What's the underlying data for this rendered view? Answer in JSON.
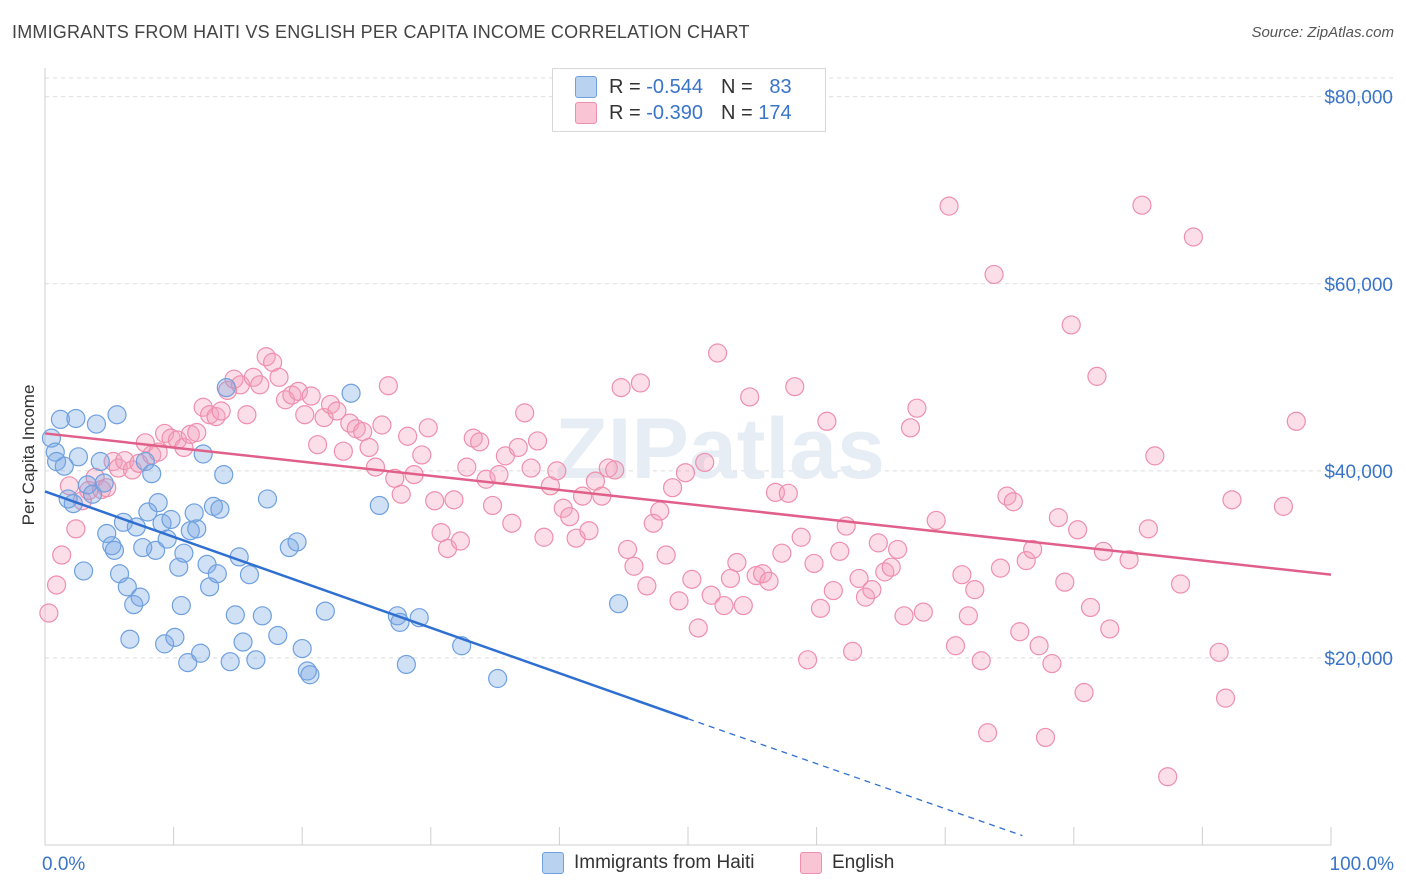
{
  "title": "IMMIGRANTS FROM HAITI VS ENGLISH PER CAPITA INCOME CORRELATION CHART",
  "source": "Source: ZipAtlas.com",
  "watermark": "ZIPatlas",
  "legend_top": [
    {
      "r_label": "R =",
      "r_value": "-0.544",
      "n_label": "N =",
      "n_value": "83"
    },
    {
      "r_label": "R =",
      "r_value": "-0.390",
      "n_label": "N =",
      "n_value": "174"
    }
  ],
  "colors": {
    "haiti": "#6fa0df",
    "english": "#ee8fad",
    "haiti_line": "#2f6fd0",
    "english_line": "#e0608a",
    "axis_label": "#3a74c9"
  },
  "chart_data": {
    "type": "scatter",
    "title": "IMMIGRANTS FROM HAITI VS ENGLISH PER CAPITA INCOME CORRELATION CHART",
    "xlabel": "",
    "ylabel": "Per Capita Income",
    "xlim": [
      0,
      100
    ],
    "ylim": [
      0,
      82000
    ],
    "x_tick_labels": [
      "0.0%",
      "100.0%"
    ],
    "y_ticks": [
      20000,
      40000,
      60000,
      80000
    ],
    "y_tick_labels": [
      "$20,000",
      "$40,000",
      "$60,000",
      "$80,000"
    ],
    "grid": true,
    "legend_placement": "top-center and bottom",
    "series": [
      {
        "name": "Immigrants from Haiti",
        "trend": {
          "x0": 0,
          "y0": 37800,
          "x1": 50,
          "y1": 13500,
          "dashed_to_x": 76,
          "dashed_to_y": 1000
        },
        "points": [
          [
            0.5,
            43500
          ],
          [
            0.8,
            42000
          ],
          [
            0.9,
            41000
          ],
          [
            1.2,
            45500
          ],
          [
            1.5,
            40500
          ],
          [
            1.8,
            37000
          ],
          [
            2.2,
            36500
          ],
          [
            2.4,
            45600
          ],
          [
            2.6,
            41500
          ],
          [
            3.0,
            29300
          ],
          [
            3.3,
            38500
          ],
          [
            3.7,
            37500
          ],
          [
            4.0,
            45000
          ],
          [
            4.3,
            41000
          ],
          [
            4.6,
            38700
          ],
          [
            4.8,
            33300
          ],
          [
            5.2,
            32000
          ],
          [
            5.4,
            31500
          ],
          [
            5.6,
            46000
          ],
          [
            5.8,
            29000
          ],
          [
            6.1,
            34500
          ],
          [
            6.4,
            27600
          ],
          [
            6.6,
            22000
          ],
          [
            6.9,
            25700
          ],
          [
            7.1,
            34000
          ],
          [
            7.4,
            26500
          ],
          [
            7.6,
            31800
          ],
          [
            7.8,
            41000
          ],
          [
            8.0,
            35600
          ],
          [
            8.3,
            39700
          ],
          [
            8.6,
            31500
          ],
          [
            8.8,
            36600
          ],
          [
            9.1,
            34400
          ],
          [
            9.3,
            21500
          ],
          [
            9.5,
            32700
          ],
          [
            9.8,
            34800
          ],
          [
            10.1,
            22200
          ],
          [
            10.4,
            29700
          ],
          [
            10.6,
            25600
          ],
          [
            10.8,
            31200
          ],
          [
            11.1,
            19500
          ],
          [
            11.3,
            33600
          ],
          [
            11.6,
            35500
          ],
          [
            11.8,
            33800
          ],
          [
            12.1,
            20500
          ],
          [
            12.3,
            41800
          ],
          [
            12.6,
            30000
          ],
          [
            12.8,
            27600
          ],
          [
            13.1,
            36200
          ],
          [
            13.4,
            29000
          ],
          [
            13.6,
            35900
          ],
          [
            13.9,
            39600
          ],
          [
            14.1,
            48900
          ],
          [
            14.4,
            19600
          ],
          [
            14.8,
            24600
          ],
          [
            15.1,
            30800
          ],
          [
            15.4,
            21700
          ],
          [
            15.9,
            28900
          ],
          [
            16.4,
            19800
          ],
          [
            16.9,
            24500
          ],
          [
            17.3,
            37000
          ],
          [
            18.1,
            22400
          ],
          [
            19.0,
            31800
          ],
          [
            19.6,
            32400
          ],
          [
            20.0,
            21000
          ],
          [
            20.4,
            18600
          ],
          [
            20.6,
            18200
          ],
          [
            21.8,
            25000
          ],
          [
            23.8,
            48300
          ],
          [
            26.0,
            36300
          ],
          [
            27.4,
            24500
          ],
          [
            27.6,
            23800
          ],
          [
            28.1,
            19300
          ],
          [
            29.1,
            24300
          ],
          [
            32.4,
            21300
          ],
          [
            35.2,
            17800
          ],
          [
            44.6,
            25800
          ]
        ]
      },
      {
        "name": "English",
        "trend": {
          "x0": 0,
          "y0": 44000,
          "x1": 100,
          "y1": 28900
        },
        "points": [
          [
            0.3,
            24800
          ],
          [
            0.9,
            27800
          ],
          [
            1.3,
            31000
          ],
          [
            1.9,
            38400
          ],
          [
            2.4,
            33800
          ],
          [
            2.9,
            36800
          ],
          [
            3.4,
            37900
          ],
          [
            3.9,
            39300
          ],
          [
            4.4,
            38000
          ],
          [
            4.8,
            38200
          ],
          [
            5.3,
            41000
          ],
          [
            5.7,
            40300
          ],
          [
            6.2,
            41100
          ],
          [
            6.8,
            40100
          ],
          [
            7.3,
            40800
          ],
          [
            7.8,
            43000
          ],
          [
            8.3,
            41700
          ],
          [
            8.8,
            42000
          ],
          [
            9.3,
            44000
          ],
          [
            9.8,
            43500
          ],
          [
            10.3,
            43300
          ],
          [
            10.8,
            42500
          ],
          [
            11.3,
            43900
          ],
          [
            11.8,
            44100
          ],
          [
            12.3,
            46800
          ],
          [
            12.8,
            46000
          ],
          [
            13.3,
            45800
          ],
          [
            13.7,
            46400
          ],
          [
            14.2,
            48600
          ],
          [
            14.7,
            49800
          ],
          [
            15.2,
            49200
          ],
          [
            15.7,
            46000
          ],
          [
            16.2,
            50000
          ],
          [
            16.7,
            49200
          ],
          [
            17.2,
            52200
          ],
          [
            17.7,
            51600
          ],
          [
            18.2,
            50000
          ],
          [
            18.7,
            47600
          ],
          [
            19.2,
            48100
          ],
          [
            19.7,
            48500
          ],
          [
            20.2,
            46000
          ],
          [
            20.7,
            48000
          ],
          [
            21.2,
            42800
          ],
          [
            21.7,
            45700
          ],
          [
            22.2,
            47100
          ],
          [
            22.7,
            46400
          ],
          [
            23.2,
            42100
          ],
          [
            23.7,
            45100
          ],
          [
            24.2,
            44500
          ],
          [
            24.7,
            44200
          ],
          [
            25.2,
            42500
          ],
          [
            25.7,
            40400
          ],
          [
            26.2,
            44900
          ],
          [
            26.7,
            49100
          ],
          [
            27.2,
            39200
          ],
          [
            27.7,
            37500
          ],
          [
            28.2,
            43700
          ],
          [
            28.7,
            39600
          ],
          [
            29.3,
            41700
          ],
          [
            29.8,
            44600
          ],
          [
            30.3,
            36800
          ],
          [
            30.8,
            33400
          ],
          [
            31.3,
            31700
          ],
          [
            31.8,
            36900
          ],
          [
            32.3,
            32500
          ],
          [
            32.8,
            40400
          ],
          [
            33.3,
            43500
          ],
          [
            33.8,
            43100
          ],
          [
            34.3,
            39100
          ],
          [
            34.8,
            36300
          ],
          [
            35.3,
            39600
          ],
          [
            35.8,
            41600
          ],
          [
            36.3,
            34400
          ],
          [
            36.8,
            42500
          ],
          [
            37.3,
            46200
          ],
          [
            37.8,
            40300
          ],
          [
            38.3,
            43200
          ],
          [
            38.8,
            32900
          ],
          [
            39.3,
            38400
          ],
          [
            39.8,
            40000
          ],
          [
            40.3,
            36000
          ],
          [
            40.8,
            35100
          ],
          [
            41.3,
            32800
          ],
          [
            41.8,
            37300
          ],
          [
            42.3,
            33600
          ],
          [
            42.8,
            38900
          ],
          [
            43.3,
            37300
          ],
          [
            43.8,
            40300
          ],
          [
            44.3,
            40100
          ],
          [
            44.8,
            48900
          ],
          [
            45.3,
            31600
          ],
          [
            45.8,
            29800
          ],
          [
            46.3,
            49400
          ],
          [
            46.8,
            27700
          ],
          [
            47.3,
            34400
          ],
          [
            47.8,
            35700
          ],
          [
            48.3,
            31000
          ],
          [
            48.8,
            38200
          ],
          [
            49.3,
            26100
          ],
          [
            49.8,
            39800
          ],
          [
            50.3,
            28400
          ],
          [
            50.8,
            23200
          ],
          [
            51.3,
            40900
          ],
          [
            51.8,
            26700
          ],
          [
            52.3,
            52600
          ],
          [
            52.8,
            25600
          ],
          [
            53.3,
            28500
          ],
          [
            53.8,
            30200
          ],
          [
            54.3,
            25600
          ],
          [
            54.8,
            47900
          ],
          [
            55.3,
            28800
          ],
          [
            55.8,
            29000
          ],
          [
            56.3,
            28200
          ],
          [
            56.8,
            37700
          ],
          [
            57.3,
            31200
          ],
          [
            57.8,
            37600
          ],
          [
            58.3,
            49000
          ],
          [
            58.8,
            32900
          ],
          [
            59.3,
            19800
          ],
          [
            59.8,
            30100
          ],
          [
            60.3,
            25300
          ],
          [
            60.8,
            45300
          ],
          [
            61.3,
            27200
          ],
          [
            61.8,
            31400
          ],
          [
            62.3,
            34100
          ],
          [
            62.8,
            20700
          ],
          [
            63.3,
            28500
          ],
          [
            63.8,
            26500
          ],
          [
            64.3,
            27300
          ],
          [
            64.8,
            32300
          ],
          [
            65.3,
            29200
          ],
          [
            65.8,
            29700
          ],
          [
            66.3,
            31600
          ],
          [
            66.8,
            24500
          ],
          [
            67.3,
            44600
          ],
          [
            67.8,
            46700
          ],
          [
            68.3,
            24900
          ],
          [
            69.3,
            34700
          ],
          [
            70.3,
            68300
          ],
          [
            70.8,
            21300
          ],
          [
            71.3,
            28900
          ],
          [
            71.8,
            24500
          ],
          [
            72.3,
            27300
          ],
          [
            72.8,
            19700
          ],
          [
            73.3,
            12000
          ],
          [
            73.8,
            61000
          ],
          [
            74.3,
            29600
          ],
          [
            74.8,
            37300
          ],
          [
            75.3,
            36700
          ],
          [
            75.8,
            22800
          ],
          [
            76.3,
            30400
          ],
          [
            76.8,
            31600
          ],
          [
            77.3,
            21300
          ],
          [
            77.8,
            11500
          ],
          [
            78.3,
            19400
          ],
          [
            78.8,
            35000
          ],
          [
            79.3,
            28100
          ],
          [
            79.8,
            55600
          ],
          [
            80.3,
            33700
          ],
          [
            80.8,
            16300
          ],
          [
            81.3,
            25400
          ],
          [
            81.8,
            50100
          ],
          [
            82.3,
            31400
          ],
          [
            82.8,
            23100
          ],
          [
            84.3,
            30500
          ],
          [
            85.3,
            68400
          ],
          [
            85.8,
            33800
          ],
          [
            86.3,
            41600
          ],
          [
            87.3,
            7300
          ],
          [
            88.3,
            27900
          ],
          [
            89.3,
            65000
          ],
          [
            91.3,
            20600
          ],
          [
            91.8,
            15700
          ],
          [
            92.3,
            36900
          ],
          [
            96.3,
            36200
          ],
          [
            97.3,
            45300
          ]
        ]
      }
    ]
  },
  "bottom_legend": [
    {
      "label": "Immigrants from Haiti"
    },
    {
      "label": "English"
    }
  ]
}
